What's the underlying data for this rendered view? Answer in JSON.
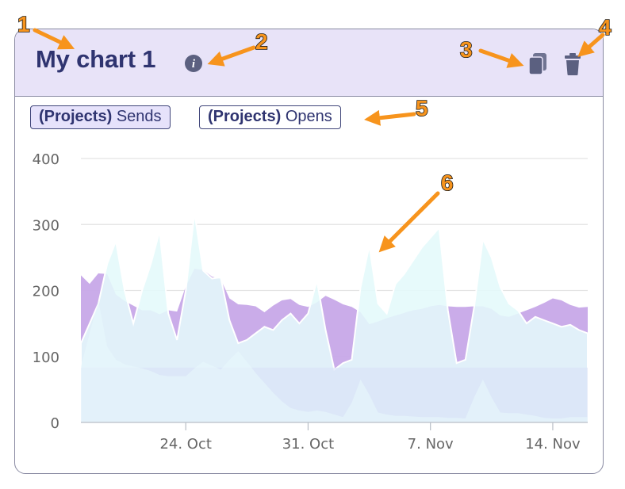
{
  "card": {
    "title": "My chart 1",
    "icons": {
      "info": "info-icon",
      "duplicate": "copy-icon",
      "delete": "trash-icon"
    }
  },
  "legend": [
    {
      "prefix": "(Projects)",
      "label": "Sends",
      "active": true
    },
    {
      "prefix": "(Projects)",
      "label": "Opens",
      "active": false
    }
  ],
  "annotation_labels": [
    "1",
    "2",
    "3",
    "4",
    "5",
    "6"
  ],
  "chart_data": {
    "type": "area",
    "x_start": "2023-10-18",
    "x_end": "2023-11-16",
    "x_step_days": 0.5,
    "xticks": [
      "24. Oct",
      "31. Oct",
      "7. Nov",
      "14. Nov"
    ],
    "yticks": [
      "0",
      "100",
      "200",
      "300",
      "400"
    ],
    "ylim": [
      0,
      400
    ],
    "grid": true,
    "series": [
      {
        "name": "Sends",
        "color": "#c7a8e8",
        "values": [
          223,
          210,
          226,
          225,
          194,
          184,
          177,
          170,
          170,
          164,
          170,
          168,
          206,
          233,
          231,
          221,
          217,
          188,
          179,
          178,
          176,
          167,
          177,
          185,
          187,
          178,
          175,
          182,
          192,
          186,
          179,
          175,
          167,
          149,
          153,
          158,
          162,
          166,
          170,
          172,
          176,
          178,
          176,
          175,
          175,
          176,
          176,
          172,
          162,
          160,
          165,
          170,
          175,
          181,
          188,
          185,
          178,
          174,
          175
        ]
      },
      {
        "name": "Opens",
        "color": "#e4f9fb",
        "values": [
          120,
          150,
          180,
          240,
          275,
          200,
          150,
          200,
          240,
          290,
          165,
          125,
          200,
          318,
          230,
          218,
          220,
          155,
          120,
          125,
          135,
          145,
          140,
          155,
          165,
          150,
          165,
          215,
          140,
          80,
          90,
          95,
          205,
          268,
          180,
          165,
          210,
          225,
          245,
          265,
          280,
          295,
          170,
          90,
          95,
          175,
          278,
          250,
          205,
          180,
          170,
          150,
          160,
          155,
          150,
          145,
          148,
          140,
          135
        ]
      },
      {
        "name": "",
        "color": "#d9e1f6",
        "values": [
          83,
          83,
          83,
          83,
          83,
          83,
          83,
          83,
          83,
          83,
          83,
          83,
          83,
          83,
          83,
          83,
          83,
          83,
          83,
          83,
          83,
          83,
          83,
          83,
          83,
          83,
          83,
          83,
          83,
          83,
          83,
          83,
          83,
          83,
          83,
          83,
          83,
          83,
          83,
          83,
          83,
          83,
          83,
          83,
          83,
          83,
          83,
          83,
          83,
          83,
          83,
          83,
          83,
          83,
          83,
          83,
          83,
          83,
          83
        ]
      },
      {
        "name": "",
        "color": "#e7f9fb",
        "values": [
          85,
          135,
          185,
          115,
          95,
          88,
          85,
          82,
          78,
          72,
          70,
          70,
          70,
          82,
          92,
          86,
          80,
          95,
          108,
          92,
          75,
          60,
          45,
          32,
          22,
          18,
          16,
          18,
          16,
          12,
          8,
          30,
          65,
          42,
          15,
          12,
          10,
          10,
          9,
          8,
          8,
          8,
          7,
          7,
          6,
          38,
          65,
          38,
          15,
          14,
          14,
          12,
          10,
          7,
          6,
          6,
          8,
          8,
          8
        ]
      }
    ]
  }
}
